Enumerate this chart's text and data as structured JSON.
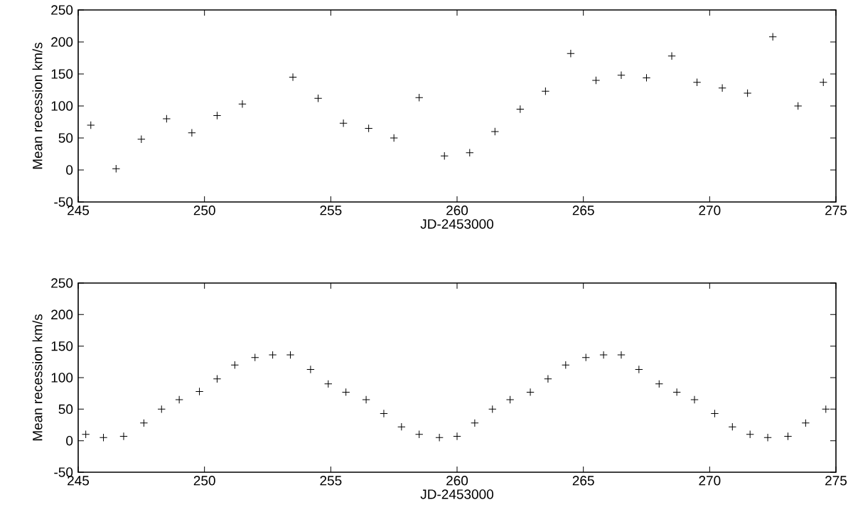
{
  "chart_data": [
    {
      "type": "scatter",
      "xlabel": "JD-2453000",
      "ylabel": "Mean recession km/s",
      "xlim": [
        245,
        275
      ],
      "ylim": [
        -50,
        250
      ],
      "xticks": [
        245,
        250,
        255,
        260,
        265,
        270,
        275
      ],
      "yticks": [
        -50,
        0,
        50,
        100,
        150,
        200,
        250
      ],
      "marker": "cross",
      "series": [
        {
          "color": "#000000",
          "x": [
            245.5,
            246.5,
            247.5,
            248.5,
            249.5,
            250.5,
            251.5,
            253.5,
            254.5,
            255.5,
            256.5,
            257.5,
            258.5,
            259.5,
            260.5,
            261.5,
            262.5,
            263.5,
            264.5,
            265.5,
            266.5,
            267.5,
            268.5,
            269.5,
            270.5,
            271.5,
            272.5,
            273.5,
            274.5
          ],
          "values": [
            70,
            2,
            48,
            80,
            58,
            85,
            103,
            145,
            112,
            73,
            65,
            50,
            113,
            22,
            27,
            60,
            95,
            123,
            182,
            140,
            148,
            144,
            178,
            137,
            128,
            120,
            208,
            100,
            137
          ]
        }
      ]
    },
    {
      "type": "scatter",
      "xlabel": "JD-2453000",
      "ylabel": "Mean recession km/s",
      "xlim": [
        245,
        275
      ],
      "ylim": [
        -50,
        250
      ],
      "xticks": [
        245,
        250,
        255,
        260,
        265,
        270,
        275
      ],
      "yticks": [
        -50,
        0,
        50,
        100,
        150,
        200,
        250
      ],
      "marker": "cross",
      "series": [
        {
          "color": "#000000",
          "x": [
            245.3,
            246.0,
            246.8,
            247.6,
            248.3,
            249.0,
            249.8,
            250.5,
            251.2,
            252.0,
            252.7,
            253.4,
            254.2,
            254.9,
            255.6,
            256.4,
            257.1,
            257.8,
            258.5,
            259.3,
            260.0,
            260.7,
            261.4,
            262.1,
            262.9,
            263.6,
            264.3,
            265.1,
            265.8,
            266.5,
            267.2,
            268.0,
            268.7,
            269.4,
            270.2,
            270.9,
            271.6,
            272.3,
            273.1,
            273.8,
            274.6
          ],
          "values": [
            10,
            5,
            7,
            28,
            50,
            65,
            78,
            98,
            120,
            132,
            136,
            136,
            113,
            90,
            77,
            65,
            43,
            22,
            10,
            5,
            7,
            28,
            50,
            65,
            77,
            98,
            120,
            132,
            136,
            136,
            113,
            90,
            77,
            65,
            43,
            22,
            10,
            5,
            7,
            28,
            50
          ]
        }
      ]
    }
  ]
}
